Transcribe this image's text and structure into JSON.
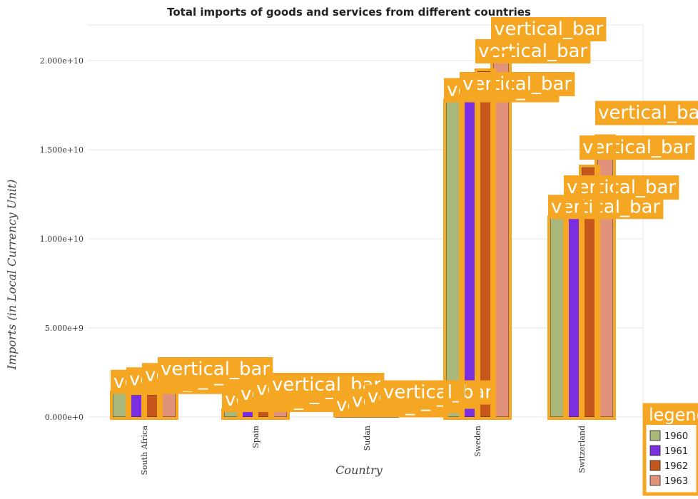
{
  "chart_data": {
    "type": "bar",
    "title": "Total imports of goods and services from different countries",
    "xlabel": "Country",
    "ylabel": "Imports (in Local Currency Unit)",
    "categories": [
      "South Africa",
      "Spain",
      "Sudan",
      "Sweden",
      "Switzerland"
    ],
    "series": [
      {
        "name": "1960",
        "color": "#aab77a",
        "values": [
          1330000000,
          320000000,
          20000000,
          17700000000,
          11150000000
        ]
      },
      {
        "name": "1961",
        "color": "#7b2ee0",
        "values": [
          1230000000,
          410000000,
          20000000,
          17800000000,
          12000000000
        ]
      },
      {
        "name": "1962",
        "color": "#c5561c",
        "values": [
          1230000000,
          440000000,
          20000000,
          19400000000,
          14000000000
        ]
      },
      {
        "name": "1963",
        "color": "#e0927a",
        "values": [
          1320000000,
          440000000,
          20000000,
          20400000000,
          15700000000
        ]
      }
    ],
    "ylim": [
      0,
      22000000000
    ],
    "yticks": [
      0,
      5000000000,
      10000000000,
      15000000000,
      20000000000
    ],
    "ytick_labels": [
      "0.000e+0",
      "5.000e+9",
      "1.000e+10",
      "1.500e+10",
      "2.000e+10"
    ],
    "grid": true,
    "legend": {
      "position": "bottom-right",
      "title": "legend"
    },
    "annotation_text": "vertical_bar",
    "annotation_color": "#f5a623"
  }
}
